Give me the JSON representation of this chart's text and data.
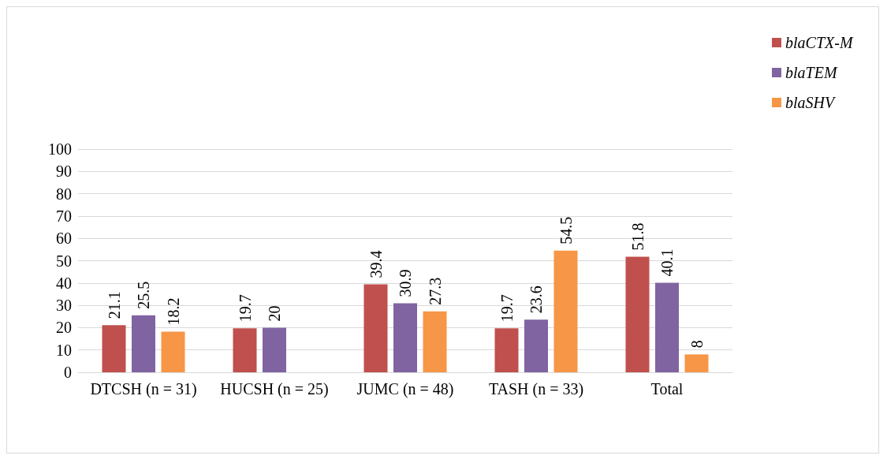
{
  "chart_data": {
    "type": "bar",
    "categories": [
      "DTCSH (n = 31)",
      "HUCSH (n = 25)",
      "JUMC (n = 48)",
      "TASH (n = 33)",
      "Total"
    ],
    "series": [
      {
        "name": "blaCTX-M",
        "color": "#c0504d",
        "values": [
          21.1,
          19.7,
          39.4,
          19.7,
          51.8
        ]
      },
      {
        "name": "blaTEM",
        "color": "#8064a2",
        "values": [
          25.5,
          20,
          30.9,
          23.6,
          40.1
        ]
      },
      {
        "name": "blaSHV",
        "color": "#f79646",
        "values": [
          18.2,
          null,
          27.3,
          54.5,
          8
        ]
      }
    ],
    "ylim": [
      0,
      100
    ],
    "yticks": [
      0,
      10,
      20,
      30,
      40,
      50,
      60,
      70,
      80,
      90,
      100
    ],
    "grid": "y",
    "legend": "top right",
    "data_labels": true
  }
}
